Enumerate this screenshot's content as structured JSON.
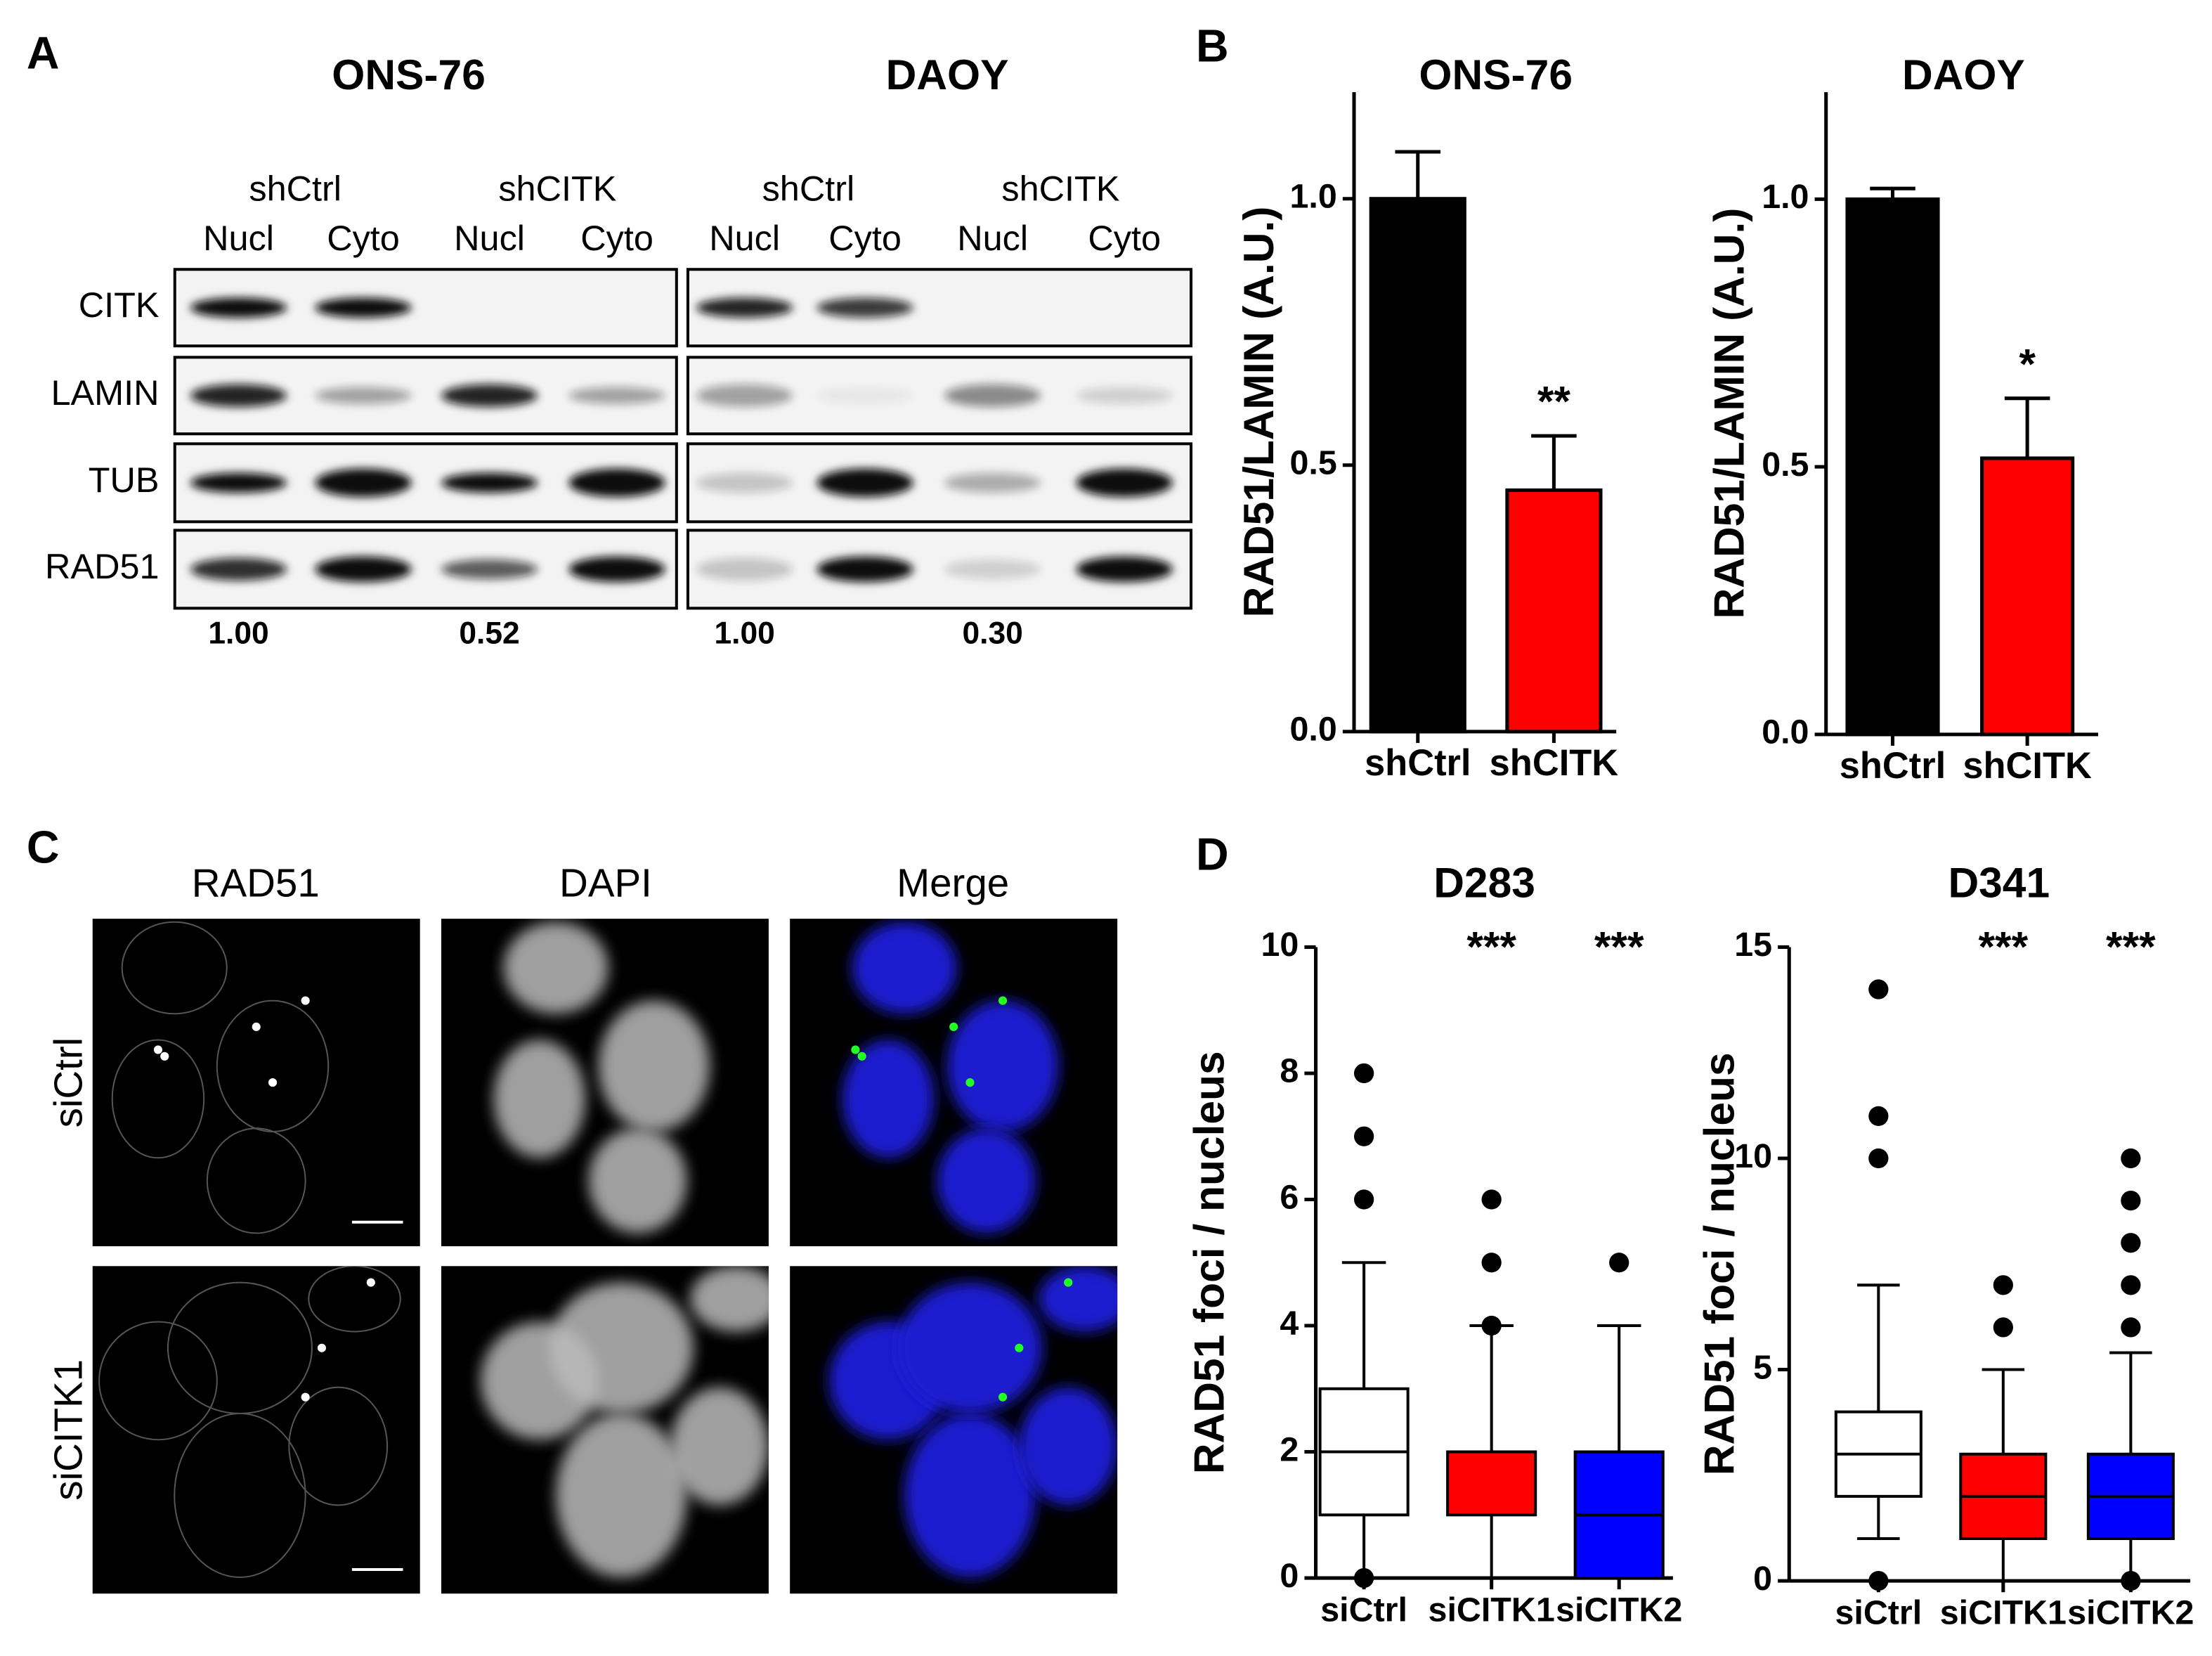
{
  "panel_labels": [
    "A",
    "B",
    "C",
    "D"
  ],
  "blot": {
    "groups": [
      {
        "title": "ONS-76",
        "conditions": [
          {
            "name": "shCtrl",
            "fractions": [
              "Nucl",
              "Cyto"
            ],
            "quantification": "1.00"
          },
          {
            "name": "shCITK",
            "fractions": [
              "Nucl",
              "Cyto"
            ],
            "quantification": "0.52"
          }
        ]
      },
      {
        "title": "DAOY",
        "conditions": [
          {
            "name": "shCtrl",
            "fractions": [
              "Nucl",
              "Cyto"
            ],
            "quantification": "1.00"
          },
          {
            "name": "shCITK",
            "fractions": [
              "Nucl",
              "Cyto"
            ],
            "quantification": "0.30"
          }
        ]
      }
    ],
    "rows": [
      "CITK",
      "LAMIN",
      "TUB",
      "RAD51"
    ]
  },
  "microscopy": {
    "columns": [
      "RAD51",
      "DAPI",
      "Merge"
    ],
    "rows": [
      "siCtrl",
      "siCITK1"
    ]
  },
  "chart_data": [
    {
      "type": "bar",
      "title": "ONS-76",
      "y_label": "RAD51/LAMIN (A.U.)",
      "categories": [
        "shCtrl",
        "shCITK"
      ],
      "values": [
        1.0,
        0.453
      ],
      "errors": [
        0.088,
        0.102
      ],
      "colors": [
        "#000000",
        "#ff0000"
      ],
      "annotations": [
        null,
        "**"
      ],
      "ylim": [
        0,
        1.2
      ],
      "yticks": [
        {
          "value": 0,
          "label": "0.0"
        },
        {
          "value": 0.5,
          "label": "0.5"
        },
        {
          "value": 1,
          "label": "1.0"
        }
      ]
    },
    {
      "type": "bar",
      "title": "DAOY",
      "y_label": "RAD51/LAMIN (A.U.)",
      "categories": [
        "shCtrl",
        "shCITK"
      ],
      "values": [
        1.0,
        0.516
      ],
      "errors": [
        0.02,
        0.112
      ],
      "colors": [
        "#000000",
        "#ff0000"
      ],
      "annotations": [
        null,
        "*"
      ],
      "ylim": [
        0,
        1.2
      ],
      "yticks": [
        {
          "value": 0,
          "label": "0.0"
        },
        {
          "value": 0.5,
          "label": "0.5"
        },
        {
          "value": 1,
          "label": "1.0"
        }
      ]
    },
    {
      "type": "box",
      "title": "D283",
      "y_label": "RAD51 foci / nucleus",
      "categories": [
        "siCtrl",
        "siCITK1",
        "siCITK2"
      ],
      "boxes": [
        {
          "color": "#ffffff",
          "low": 0,
          "q1": 1,
          "median": 2,
          "q3": 3,
          "high": 5,
          "outliers": [
            0,
            6,
            7,
            8
          ]
        },
        {
          "color": "#ff0000",
          "low": 0,
          "q1": 1,
          "median": 2,
          "q3": 2,
          "high": 4,
          "outliers": [
            4,
            5,
            6
          ],
          "annotation": "***"
        },
        {
          "color": "#0000ff",
          "low": 0,
          "q1": 0,
          "median": 1,
          "q3": 2,
          "high": 4,
          "outliers": [
            5
          ],
          "annotation": "***"
        }
      ],
      "ylim": [
        0,
        10
      ],
      "yticks": [
        0,
        2,
        4,
        6,
        8,
        10
      ]
    },
    {
      "type": "box",
      "title": "D341",
      "y_label": "RAD51 foci / nucleus",
      "categories": [
        "siCtrl",
        "siCITK1",
        "siCITK2"
      ],
      "boxes": [
        {
          "color": "#ffffff",
          "low": 1,
          "q1": 2,
          "median": 3,
          "q3": 4,
          "high": 7,
          "outliers": [
            0,
            10,
            11,
            14
          ]
        },
        {
          "color": "#ff0000",
          "low": 0,
          "q1": 1,
          "median": 2,
          "q3": 3,
          "high": 5,
          "outliers": [
            6,
            7
          ],
          "annotation": "***"
        },
        {
          "color": "#0000ff",
          "low": 0,
          "q1": 1,
          "median": 2,
          "q3": 3,
          "high": 5.4,
          "outliers": [
            0,
            6,
            7,
            8,
            9,
            10
          ],
          "annotation": "***"
        }
      ],
      "ylim": [
        0,
        15
      ],
      "yticks": [
        0,
        5,
        10,
        15
      ]
    }
  ]
}
